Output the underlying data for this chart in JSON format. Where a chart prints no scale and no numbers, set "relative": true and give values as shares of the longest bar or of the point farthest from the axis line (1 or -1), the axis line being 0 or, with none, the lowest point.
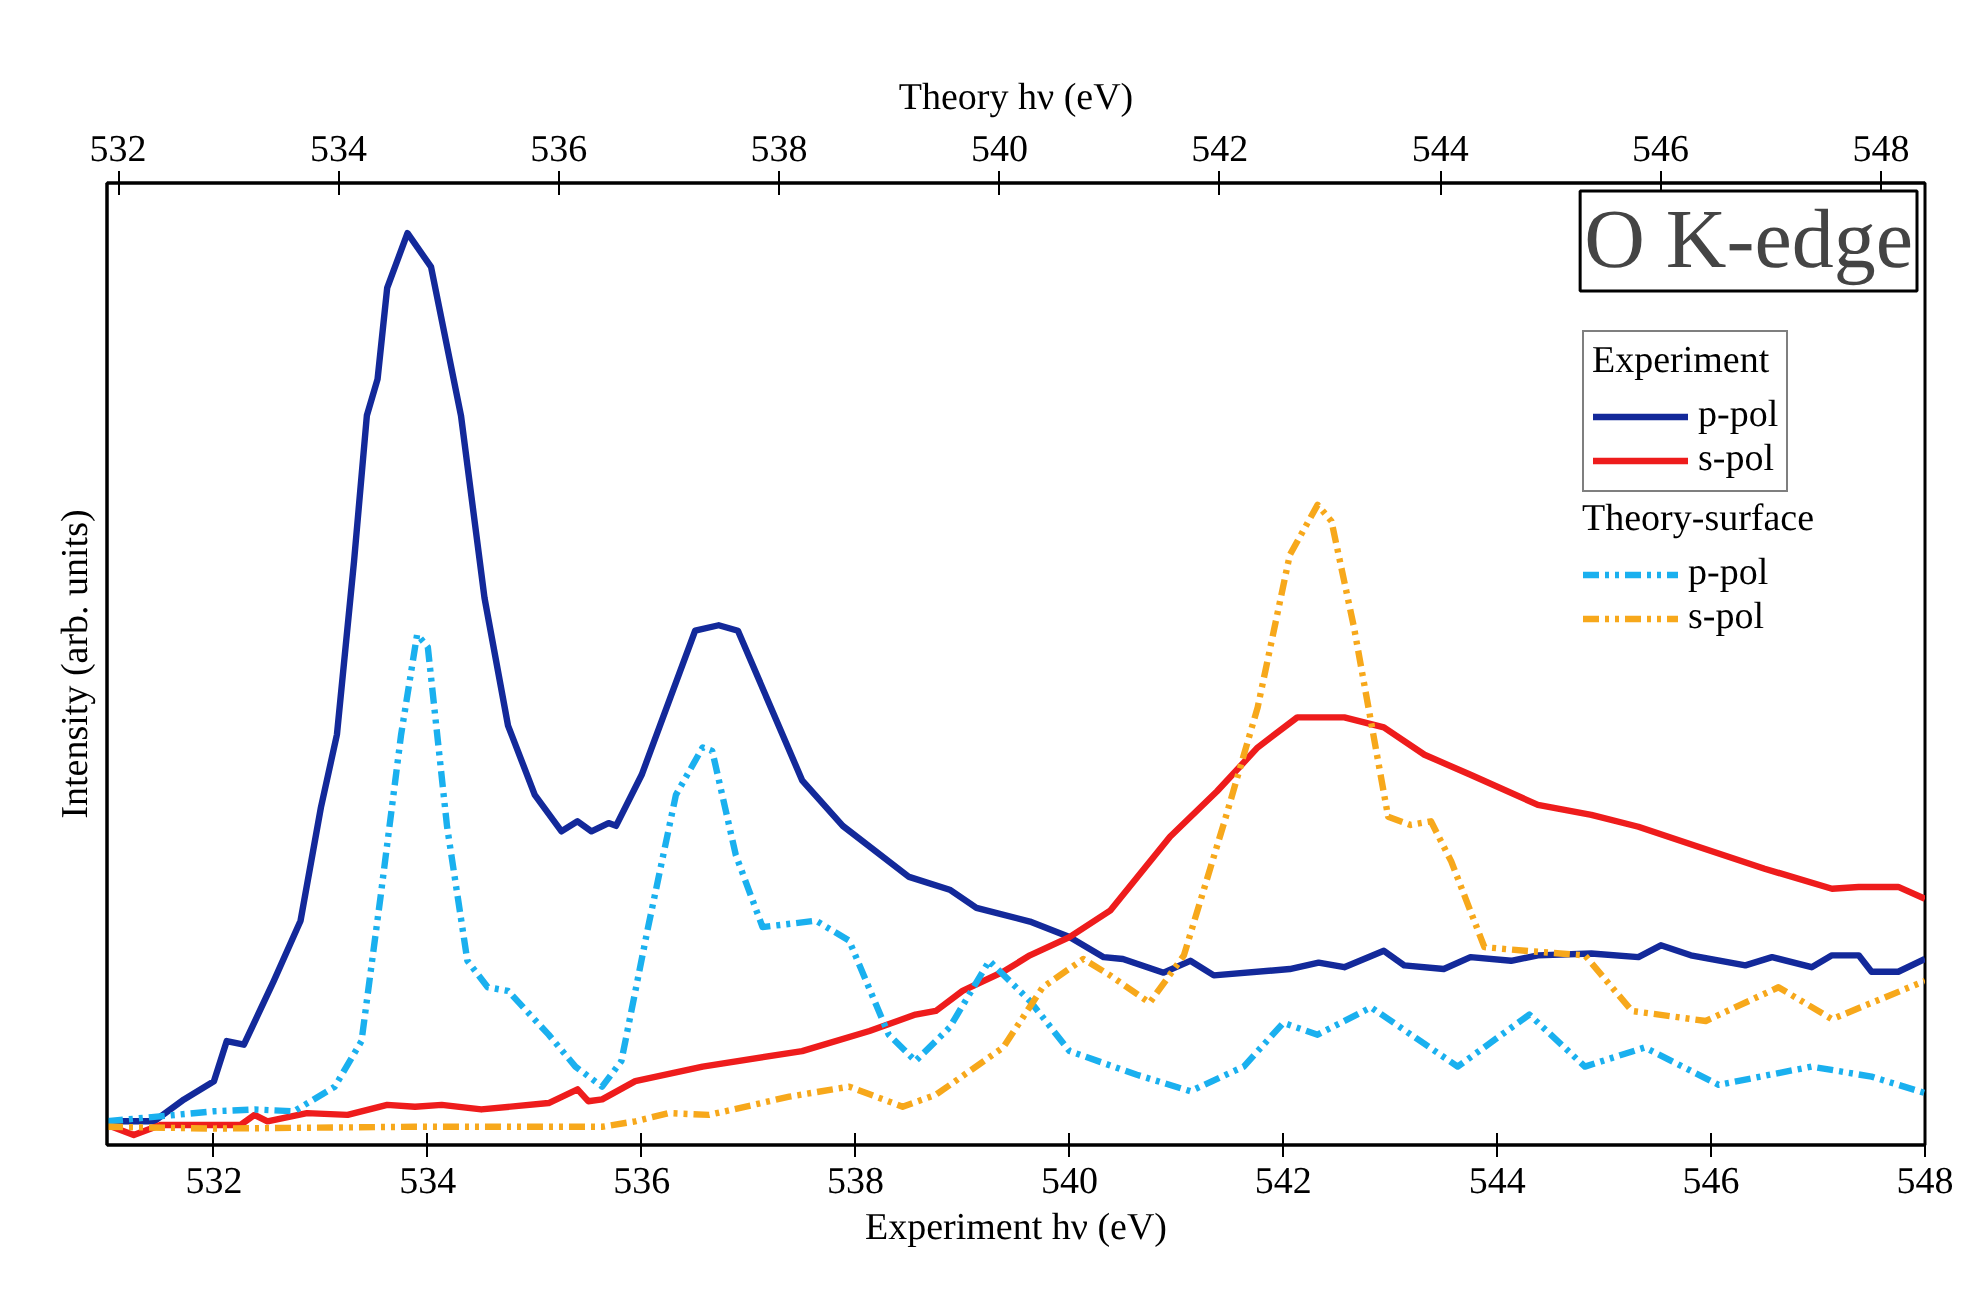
{
  "chart_data": {
    "type": "line",
    "relative": true,
    "xlabel": "Experiment hν (eV)",
    "x2label": "Theory hν (eV)",
    "ylabel": "Intensity (arb. units)",
    "xlim": [
      531,
      548
    ],
    "xticks": [
      532,
      534,
      536,
      538,
      540,
      542,
      544,
      546,
      548
    ],
    "x2lim": [
      531.9,
      548.4
    ],
    "x2ticks": [
      532,
      534,
      536,
      538,
      540,
      542,
      544,
      546,
      548
    ],
    "annotations": [
      "O K-edge"
    ],
    "legend": "top right",
    "legend_title": [
      "Experiment",
      "Theory-surface"
    ],
    "grid": false,
    "series": [
      {
        "name": "p-pol",
        "color": "#13299a",
        "line_style": "solid",
        "x": [
          531.03,
          531.44,
          531.72,
          532.0,
          532.12,
          532.28,
          532.56,
          532.81,
          533.0,
          533.15,
          533.31,
          533.43,
          533.53,
          533.62,
          533.81,
          534.03,
          534.31,
          534.53,
          534.75,
          535.0,
          535.25,
          535.4,
          535.53,
          535.69,
          535.76,
          536.0,
          536.5,
          536.72,
          536.9,
          537.5,
          537.88,
          538.5,
          538.88,
          539.13,
          539.63,
          540.0,
          540.32,
          540.5,
          540.88,
          541.13,
          541.35,
          542.06,
          542.33,
          542.57,
          542.94,
          543.13,
          543.5,
          543.75,
          544.13,
          544.38,
          544.88,
          545.32,
          545.53,
          545.81,
          546.32,
          546.57,
          546.94,
          547.13,
          547.38,
          547.5,
          547.75,
          548.0
        ],
        "values": [
          0.026,
          0.026,
          0.05,
          0.07,
          0.114,
          0.11,
          0.18,
          0.246,
          0.37,
          0.45,
          0.64,
          0.8,
          0.84,
          0.94,
          1.0,
          0.963,
          0.8,
          0.6,
          0.46,
          0.384,
          0.344,
          0.355,
          0.344,
          0.353,
          0.35,
          0.406,
          0.564,
          0.57,
          0.564,
          0.4,
          0.35,
          0.294,
          0.28,
          0.26,
          0.245,
          0.228,
          0.206,
          0.204,
          0.189,
          0.202,
          0.186,
          0.193,
          0.2,
          0.195,
          0.213,
          0.197,
          0.193,
          0.206,
          0.202,
          0.208,
          0.21,
          0.206,
          0.219,
          0.208,
          0.197,
          0.206,
          0.195,
          0.208,
          0.208,
          0.19,
          0.19,
          0.204
        ]
      },
      {
        "name": "s-pol",
        "color": "#ee1c1c",
        "line_style": "solid",
        "x": [
          531.0,
          531.25,
          531.5,
          532.25,
          532.38,
          532.5,
          532.87,
          533.25,
          533.62,
          533.88,
          534.13,
          534.5,
          535.13,
          535.4,
          535.5,
          535.63,
          535.94,
          536.57,
          537.5,
          538.13,
          538.56,
          538.75,
          539.0,
          539.38,
          539.63,
          540.0,
          540.38,
          540.94,
          541.38,
          541.76,
          542.13,
          542.57,
          542.94,
          543.32,
          543.75,
          544.38,
          544.88,
          545.32,
          545.88,
          546.5,
          547.13,
          547.38,
          547.75,
          548.0
        ],
        "values": [
          0.022,
          0.011,
          0.022,
          0.022,
          0.033,
          0.026,
          0.035,
          0.033,
          0.044,
          0.042,
          0.044,
          0.039,
          0.046,
          0.061,
          0.048,
          0.05,
          0.07,
          0.086,
          0.103,
          0.125,
          0.143,
          0.147,
          0.169,
          0.19,
          0.208,
          0.228,
          0.257,
          0.338,
          0.388,
          0.436,
          0.469,
          0.469,
          0.458,
          0.428,
          0.406,
          0.373,
          0.362,
          0.349,
          0.327,
          0.303,
          0.281,
          0.283,
          0.283,
          0.27
        ]
      },
      {
        "name": "p-pol",
        "color": "#1ab0ef",
        "line_style": "dashed",
        "x": [
          531.0,
          532.0,
          532.38,
          532.75,
          533.13,
          533.38,
          533.56,
          533.75,
          533.9,
          534.0,
          534.18,
          534.37,
          534.56,
          534.75,
          535.13,
          535.38,
          535.63,
          535.81,
          536.06,
          536.32,
          536.57,
          536.66,
          536.88,
          537.13,
          537.63,
          537.94,
          538.31,
          538.56,
          538.88,
          539.25,
          539.63,
          540.0,
          540.63,
          541.13,
          541.63,
          542.0,
          542.32,
          542.82,
          543.63,
          544.3,
          544.82,
          545.38,
          546.07,
          546.94,
          547.5,
          548.0
        ],
        "values": [
          0.026,
          0.037,
          0.039,
          0.037,
          0.064,
          0.114,
          0.274,
          0.45,
          0.56,
          0.546,
          0.349,
          0.202,
          0.173,
          0.169,
          0.121,
          0.086,
          0.064,
          0.092,
          0.239,
          0.384,
          0.436,
          0.432,
          0.318,
          0.239,
          0.246,
          0.224,
          0.121,
          0.092,
          0.129,
          0.202,
          0.158,
          0.103,
          0.077,
          0.059,
          0.086,
          0.134,
          0.121,
          0.151,
          0.086,
          0.143,
          0.086,
          0.107,
          0.066,
          0.086,
          0.075,
          0.057
        ]
      },
      {
        "name": "s-pol",
        "color": "#f7a81b",
        "line_style": "dashed",
        "x": [
          531.0,
          532.0,
          533.88,
          535.13,
          535.63,
          535.94,
          536.25,
          536.63,
          537.38,
          537.94,
          538.44,
          538.75,
          539.38,
          539.75,
          540.13,
          540.38,
          540.75,
          541.07,
          541.45,
          541.76,
          542.06,
          542.32,
          542.45,
          542.66,
          542.98,
          543.19,
          543.38,
          543.57,
          543.88,
          544.26,
          544.82,
          545.26,
          545.95,
          546.63,
          547.13,
          548.0
        ],
        "values": [
          0.02,
          0.018,
          0.02,
          0.02,
          0.02,
          0.026,
          0.035,
          0.033,
          0.053,
          0.064,
          0.042,
          0.055,
          0.107,
          0.173,
          0.204,
          0.186,
          0.156,
          0.208,
          0.355,
          0.48,
          0.647,
          0.702,
          0.684,
          0.568,
          0.36,
          0.351,
          0.355,
          0.311,
          0.217,
          0.213,
          0.208,
          0.147,
          0.136,
          0.173,
          0.138,
          0.18
        ]
      }
    ]
  }
}
